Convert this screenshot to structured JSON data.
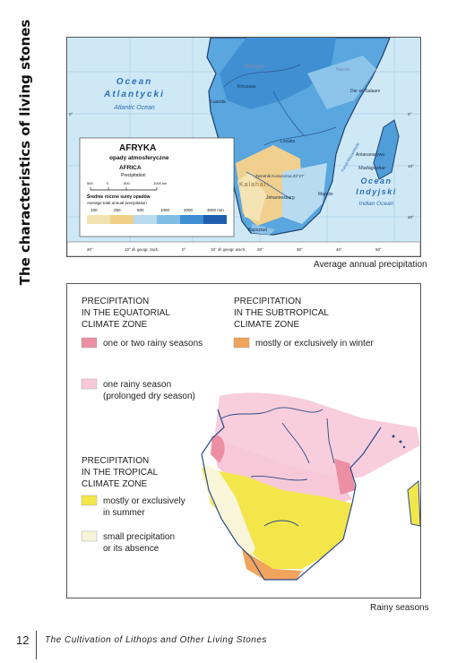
{
  "side_title": "The characteristics of living stones",
  "map1": {
    "caption": "Average annual precipitation",
    "ocean_atlantic": [
      "Ocean",
      "Atlantycki",
      "Atlantic Ocean"
    ],
    "ocean_indian": [
      "Ocean",
      "Indyjski",
      "Indian Ocean"
    ],
    "places": [
      "Kongo",
      "Kinszasa",
      "Luanda",
      "Nairobi",
      "Dar es-Salaam",
      "Lusaka",
      "Antananarywa",
      "Madagaskar",
      "Kanał Mozambicki",
      "Zwrotnik Koziorożca 23°27'",
      "Kalahari",
      "Maputo",
      "Johannesburg",
      "Kapsztad"
    ],
    "legend_title": "AFRYKA",
    "legend_subtitle": "opady atmosferyczne",
    "legend_title_en": "AFRICA",
    "legend_subtitle_en": "Precipitation",
    "scale_labels": [
      "500",
      "0",
      "500",
      "1000 km"
    ],
    "legend_desc_pl": "Średnie roczne sumy opadów",
    "legend_desc_en": "Average total annual precipitation",
    "legend_values": [
      "100",
      "250",
      "500",
      "1000",
      "2000",
      "3000 mm"
    ],
    "legend_colors": [
      "#f2e2b0",
      "#f0cf88",
      "#b9d9ee",
      "#7fbde6",
      "#3d8fd0",
      "#1f5fae"
    ],
    "bottom_ticks": [
      "20°",
      "10° dł. geogr. zach.",
      "0°",
      "10° dł. geogr. wsch.",
      "20°",
      "30°",
      "40°",
      "50°"
    ],
    "lat_labels": [
      "10°",
      "0°",
      "10°",
      "20°",
      "30°"
    ]
  },
  "map2": {
    "caption": "Rainy seasons",
    "equatorial_heading": [
      "PRECIPITATION",
      "IN THE EQUATORIAL",
      "CLIMATE ZONE"
    ],
    "subtropical_heading": [
      "PRECIPITATION",
      "IN THE SUBTROPICAL",
      "CLIMATE ZONE"
    ],
    "tropical_heading": [
      "PRECIPITATION",
      "IN THE TROPICAL",
      "CLIMATE ZONE"
    ],
    "legend": [
      {
        "lines": [
          "one or two rainy seasons"
        ],
        "color": "#ec8fa4"
      },
      {
        "lines": [
          "mostly or exclusively in winter"
        ],
        "color": "#f2a45c"
      },
      {
        "lines": [
          "one rainy season",
          "(prolonged dry season)"
        ],
        "color": "#f7c9d8"
      },
      {
        "lines": [
          "mostly or exclusively",
          "in summer"
        ],
        "color": "#f2e64a"
      },
      {
        "lines": [
          "small precipitation",
          "or its absence"
        ],
        "color": "#f8f5d8"
      }
    ]
  },
  "footer": {
    "page_number": "12",
    "title": "The Cultivation of Lithops and Other Living Stones"
  }
}
